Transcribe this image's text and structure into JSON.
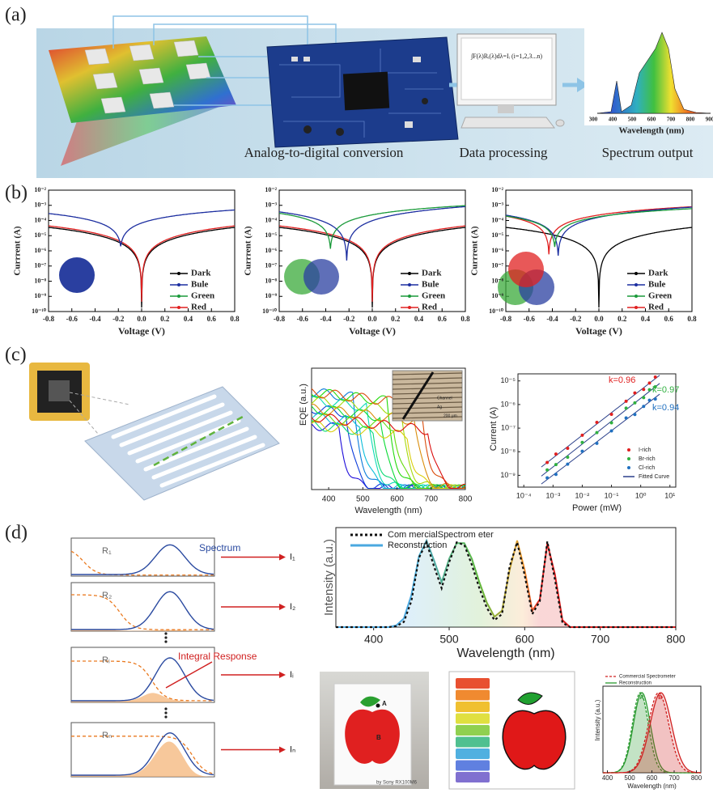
{
  "panel_a": {
    "label": "(a)",
    "formula": "∫F(λ)Rᵢ(λ)dλ=Iᵢ (i=1,2,3...n)",
    "steps": [
      "Analog-to-digital conversion",
      "Data processing",
      "Spectrum output"
    ],
    "inset_xlabel": "Wavelength (nm)",
    "inset_xticks": [
      "300",
      "400",
      "500",
      "600",
      "700",
      "800",
      "900"
    ]
  },
  "panel_b": {
    "label": "(b)",
    "ylabel": "Currrent (A)",
    "xlabel": "Voltage (V)",
    "xticks": [
      "-0.8",
      "-0.6",
      "-0.4",
      "-0.2",
      "0.0",
      "0.2",
      "0.4",
      "0.6",
      "0.8"
    ],
    "yticks": [
      "10⁻²",
      "10⁻³",
      "10⁻⁴",
      "10⁻⁵",
      "10⁻⁶",
      "10⁻⁷",
      "10⁻⁸",
      "10⁻⁹",
      "10⁻¹⁰"
    ],
    "legend": [
      "Dark",
      "Bule",
      "Green",
      "Red"
    ]
  },
  "panel_c": {
    "label": "(c)",
    "eqe": {
      "ylabel": "EQE (a.u.)",
      "xlabel": "Wavelength (nm)",
      "xticks": [
        "400",
        "500",
        "600",
        "700",
        "800"
      ],
      "inset_labels": [
        "Channel",
        "Ag",
        "200 μm"
      ]
    },
    "iv": {
      "ylabel": "Current (A)",
      "xlabel": "Power (mW)",
      "xticks": [
        "10⁻⁴",
        "10⁻³",
        "10⁻²",
        "10⁻¹",
        "10⁰",
        "10¹"
      ],
      "yticks": [
        "10⁻⁵",
        "10⁻⁶",
        "10⁻⁷",
        "10⁻⁸",
        "10⁻⁹"
      ],
      "slopes": [
        "k=0.96",
        "k=0.97",
        "k=0.94"
      ],
      "legend": [
        "I-rich",
        "Br-rich",
        "Cl-rich",
        "Fitted Curve"
      ]
    }
  },
  "panel_d": {
    "label": "(d)",
    "rows": [
      {
        "r": "R₁",
        "i": "I₁"
      },
      {
        "r": "R₂",
        "i": "I₂"
      },
      {
        "r": "Rᵢ",
        "i": "Iᵢ"
      },
      {
        "r": "Rₙ",
        "i": "Iₙ"
      }
    ],
    "spectrum_label": "Spectrum",
    "integral_label": "Integral Response",
    "photo_points": [
      "A",
      "B"
    ],
    "photo_caption": "by Sony RX100M6",
    "small_chart": {
      "legend": [
        "Commercial Spectrometer",
        "Reconstruction"
      ],
      "ylabel": "Intensity (a.u.)",
      "xlabel": "Wavelength (nm)",
      "xticks": [
        "400",
        "500",
        "600",
        "700",
        "800"
      ],
      "peaks": [
        "A",
        "B"
      ]
    }
  },
  "chart_data": {
    "type": "line",
    "ylabel": "Intensity (a.u.)",
    "xlabel": "Wavelength (nm)",
    "x": [
      350,
      360,
      370,
      380,
      390,
      400,
      410,
      420,
      430,
      440,
      450,
      460,
      470,
      480,
      490,
      500,
      510,
      520,
      530,
      540,
      550,
      560,
      570,
      580,
      590,
      600,
      610,
      620,
      630,
      640,
      650,
      660,
      670,
      680,
      690,
      700,
      710,
      720,
      730,
      740,
      750,
      760,
      770,
      780,
      790,
      800
    ],
    "xlim": [
      350,
      800
    ],
    "xticks": [
      400,
      500,
      600,
      700,
      800
    ],
    "ylim": [
      0,
      1.15
    ],
    "series": [
      {
        "name": "Com mercialSpectrom eter",
        "color": "#111111",
        "dashed": true,
        "values": [
          0,
          0,
          0,
          0,
          0,
          0,
          0,
          0,
          0.01,
          0.06,
          0.3,
          0.8,
          0.98,
          0.7,
          0.45,
          0.75,
          0.98,
          0.95,
          0.72,
          0.45,
          0.22,
          0.08,
          0.15,
          0.7,
          0.98,
          0.6,
          0.15,
          0.3,
          0.99,
          0.55,
          0.05,
          0,
          0,
          0,
          0,
          0,
          0,
          0,
          0,
          0,
          0,
          0,
          0,
          0,
          0,
          0
        ]
      },
      {
        "name": "Reconstruction",
        "color": "#e02020",
        "gradient": [
          "#4aa8e0",
          "#5cb83a",
          "#f09a30",
          "#e02020"
        ],
        "values": [
          0,
          0,
          0,
          0,
          0,
          0,
          0,
          0,
          0.02,
          0.1,
          0.37,
          0.82,
          1.0,
          0.77,
          0.52,
          0.79,
          0.97,
          0.97,
          0.79,
          0.52,
          0.28,
          0.12,
          0.19,
          0.66,
          1.0,
          0.66,
          0.19,
          0.32,
          0.97,
          0.61,
          0.08,
          0,
          0,
          0,
          0,
          0,
          0,
          0,
          0,
          0,
          0,
          0,
          0,
          0,
          0,
          0
        ]
      }
    ]
  }
}
